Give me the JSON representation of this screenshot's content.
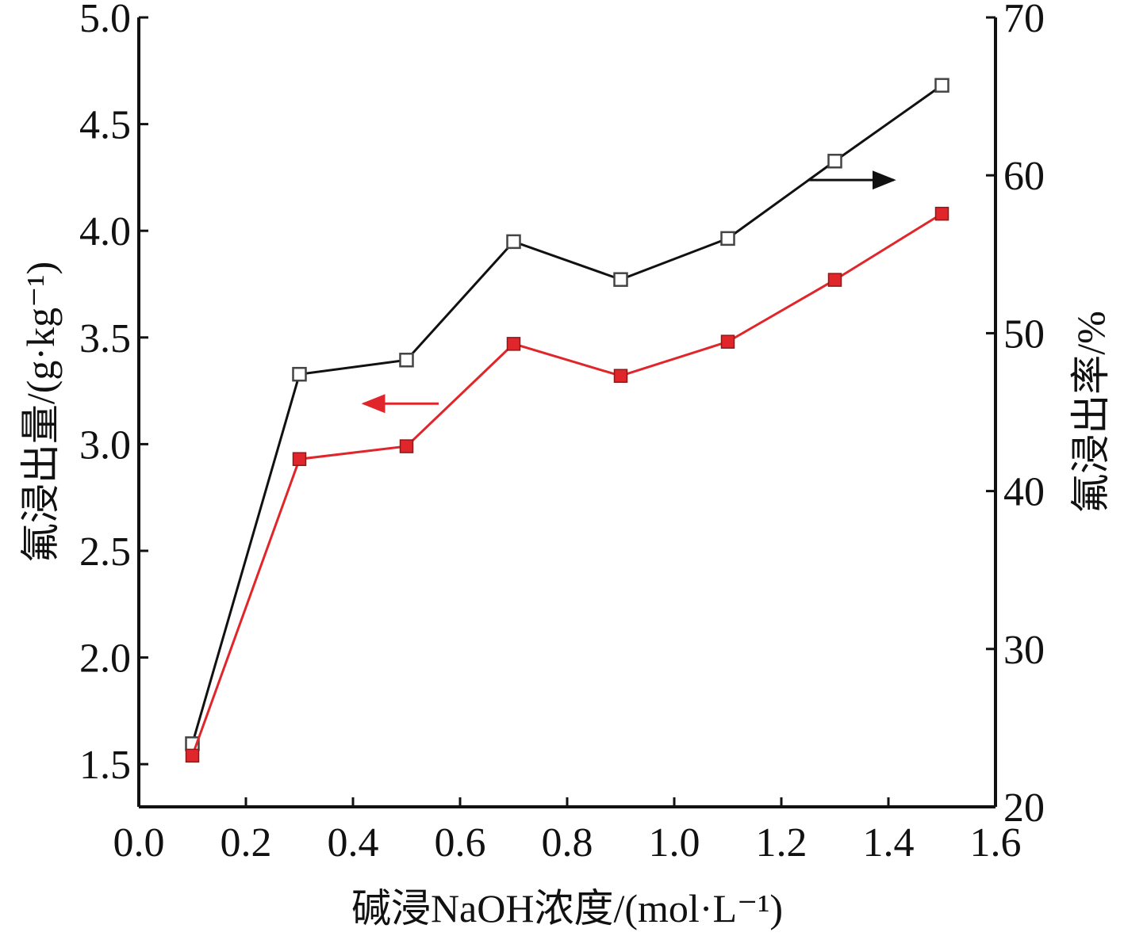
{
  "chart_data": {
    "type": "line",
    "title": "",
    "xlabel": "碱浸NaOH浓度/(mol·L⁻¹)",
    "ylabel": "氟浸出量/(g·kg⁻¹)",
    "y2label": "氟浸出率/%",
    "xlim": [
      0.0,
      1.6
    ],
    "ylim": [
      1.3,
      5.0
    ],
    "y2lim": [
      20,
      70
    ],
    "x_ticks": [
      "0.0",
      "0.2",
      "0.4",
      "0.6",
      "0.8",
      "1.0",
      "1.2",
      "1.4",
      "1.6"
    ],
    "y_ticks": [
      "1.5",
      "2.0",
      "2.5",
      "3.0",
      "3.5",
      "4.0",
      "4.5",
      "5.0"
    ],
    "y2_ticks": [
      "20",
      "30",
      "40",
      "50",
      "60",
      "70"
    ],
    "x": [
      0.1,
      0.3,
      0.5,
      0.7,
      0.9,
      1.1,
      1.3,
      1.5
    ],
    "series": [
      {
        "axis": "left",
        "marker": "filled-square",
        "color": "#e0262a",
        "values": [
          1.54,
          2.93,
          2.99,
          3.47,
          3.32,
          3.48,
          3.77,
          4.08
        ]
      },
      {
        "axis": "right",
        "marker": "open-square",
        "color": "#111111",
        "values": [
          24.0,
          47.4,
          48.3,
          55.8,
          53.4,
          56.0,
          60.9,
          65.7
        ]
      }
    ],
    "annotations": [
      {
        "type": "arrow",
        "direction": "left",
        "series": 0,
        "color": "#e0262a"
      },
      {
        "type": "arrow",
        "direction": "right",
        "series": 1,
        "color": "#111111"
      }
    ],
    "grid": false,
    "legend": "none"
  }
}
